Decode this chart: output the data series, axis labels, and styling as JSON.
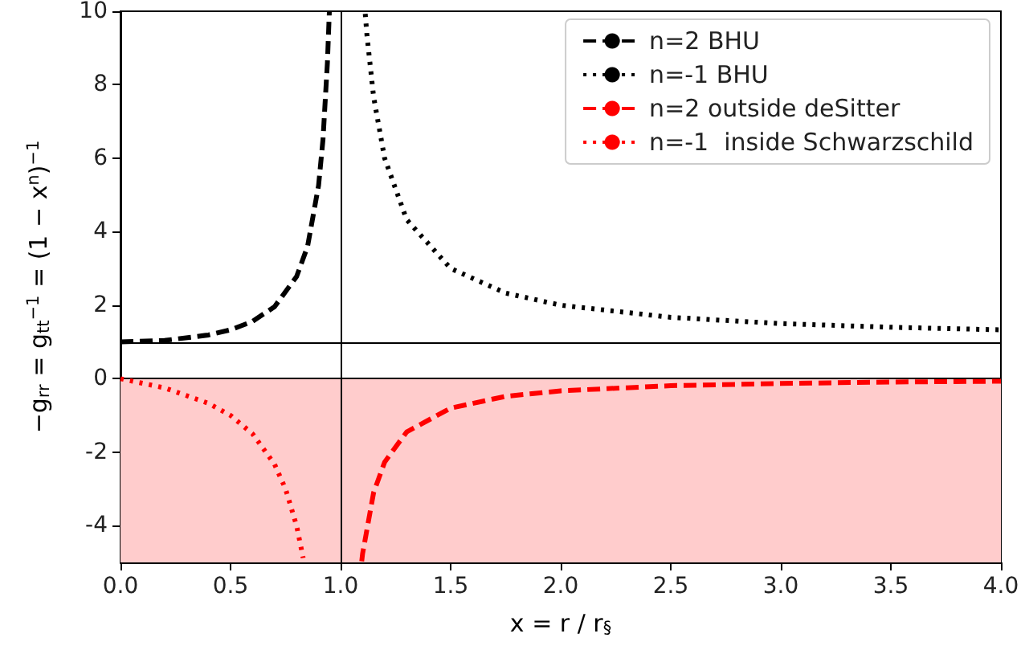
{
  "chart_data": {
    "type": "line",
    "xlabel": "x = r / r$_{§}$",
    "ylabel": "−g$_{rr}$ = g$_{tt}$$^{−1}$ = (1 − x$^{n}$)$^{−1}$",
    "xlim": [
      0,
      4
    ],
    "ylim": [
      -5,
      10
    ],
    "xticks": [
      {
        "value": 0,
        "label": "0.0"
      },
      {
        "value": 0.5,
        "label": "0.5"
      },
      {
        "value": 1,
        "label": "1.0"
      },
      {
        "value": 1.5,
        "label": "1.5"
      },
      {
        "value": 2,
        "label": "2.0"
      },
      {
        "value": 2.5,
        "label": "2.5"
      },
      {
        "value": 3,
        "label": "3.0"
      },
      {
        "value": 3.5,
        "label": "3.5"
      },
      {
        "value": 4,
        "label": "4.0"
      }
    ],
    "yticks": [
      -4,
      -2,
      0,
      2,
      4,
      6,
      8,
      10
    ],
    "grid": false,
    "legend": "top right",
    "marker": "none",
    "series": [
      {
        "name": "n=2 BHU",
        "color": "#000000",
        "line_style": "dashed",
        "x": [
          0,
          0.2,
          0.4,
          0.5,
          0.6,
          0.7,
          0.8,
          0.85,
          0.9,
          0.92,
          0.94,
          0.949
        ],
        "values": [
          1,
          1.04,
          1.19,
          1.33,
          1.56,
          1.96,
          2.78,
          3.6,
          5.26,
          6.51,
          8.59,
          10
        ]
      },
      {
        "name": "n=-1 BHU",
        "color": "#000000",
        "line_style": "dotted",
        "x": [
          1.112,
          1.12,
          1.15,
          1.2,
          1.3,
          1.5,
          1.75,
          2,
          2.5,
          3,
          3.5,
          4
        ],
        "values": [
          9.93,
          9.33,
          7.67,
          6,
          4.33,
          3,
          2.33,
          2,
          1.67,
          1.5,
          1.4,
          1.33
        ]
      },
      {
        "name": "n=2 outside deSitter",
        "color": "#ff0000",
        "line_style": "dashed",
        "x": [
          1.096,
          1.1,
          1.15,
          1.2,
          1.3,
          1.5,
          1.75,
          2,
          2.5,
          3,
          3.5,
          4
        ],
        "values": [
          -4.97,
          -4.76,
          -3.1,
          -2.27,
          -1.45,
          -0.8,
          -0.48,
          -0.33,
          -0.19,
          -0.13,
          -0.09,
          -0.07
        ]
      },
      {
        "name": "n=-1  inside Schwarzschild",
        "color": "#ff0000",
        "line_style": "dotted",
        "x": [
          0,
          0.2,
          0.4,
          0.5,
          0.6,
          0.7,
          0.75,
          0.8,
          0.83
        ],
        "values": [
          0,
          -0.25,
          -0.67,
          -1,
          -1.5,
          -2.33,
          -3,
          -4,
          -4.88
        ]
      }
    ],
    "ref_lines": [
      {
        "axis": "y",
        "value": 1,
        "color": "#000000"
      },
      {
        "axis": "y",
        "value": 0,
        "color": "#000000"
      },
      {
        "axis": "x",
        "value": 1,
        "color": "#000000"
      }
    ],
    "bands": [
      {
        "axis": "y",
        "from": -5,
        "to": 0,
        "color": "#ffcccc"
      }
    ]
  }
}
